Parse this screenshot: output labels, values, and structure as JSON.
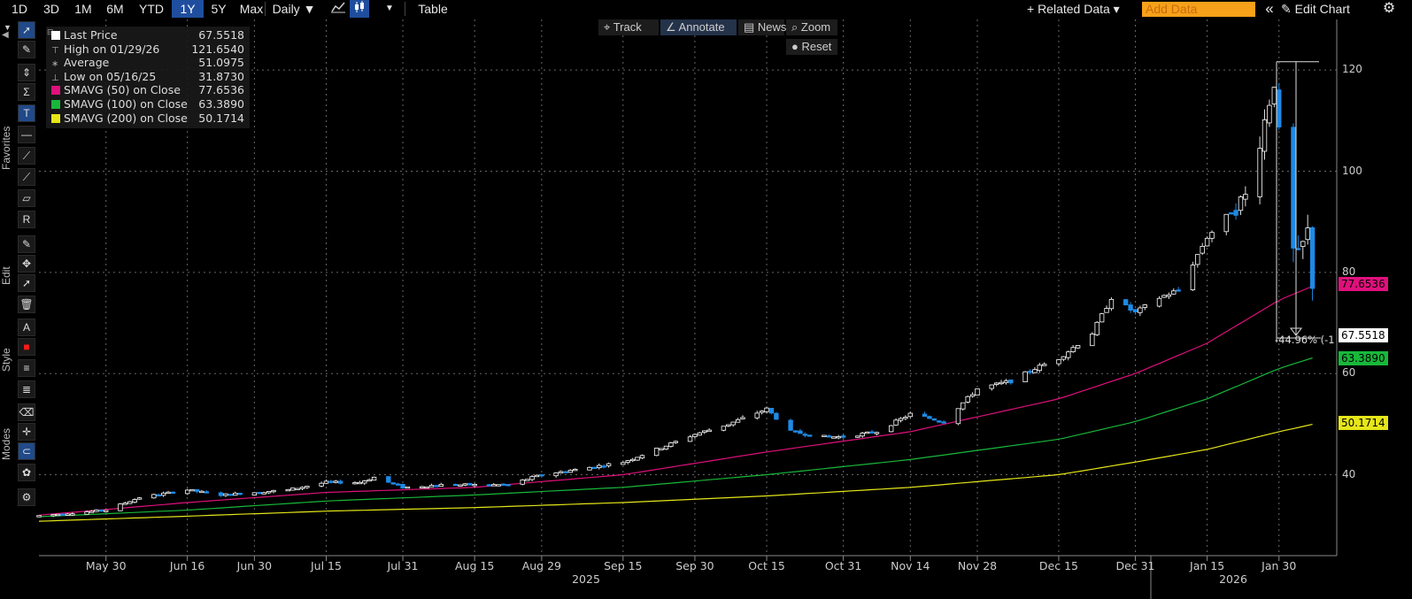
{
  "toolbar": {
    "periods": [
      "1D",
      "3D",
      "1M",
      "6M",
      "YTD",
      "1Y",
      "5Y",
      "Max"
    ],
    "selected_period": "1Y",
    "frequency": "Daily ▼",
    "table_label": "Table",
    "related_data": "+ Related Data ▾",
    "add_data_placeholder": "Add Data",
    "collapse": "«",
    "edit_chart": "✎ Edit Chart",
    "gear": "⚙"
  },
  "chart_buttons": {
    "track": "⌖ Track",
    "annotate": "∠ Annotate",
    "news": "▤ News",
    "zoom": "⌕ Zoom",
    "reset": "● Reset"
  },
  "side_labels": {
    "favorites": "Favorites",
    "edit": "Edit",
    "style": "Style",
    "modes": "Modes"
  },
  "legend": [
    {
      "label": "Last Price",
      "value": "67.5518",
      "color": "#ffffff",
      "marker": "box"
    },
    {
      "label": "High on 01/29/26",
      "value": "121.6540",
      "color": "#aaaaaa",
      "marker": "high"
    },
    {
      "label": "Average",
      "value": "51.0975",
      "color": "#aaaaaa",
      "marker": "avg"
    },
    {
      "label": "Low on 05/16/25",
      "value": "31.8730",
      "color": "#aaaaaa",
      "marker": "low"
    },
    {
      "label": "SMAVG (50)  on Close",
      "value": "77.6536",
      "color": "#e0107c",
      "marker": "box"
    },
    {
      "label": "SMAVG (100)  on Close",
      "value": "63.3890",
      "color": "#18b83a",
      "marker": "box"
    },
    {
      "label": "SMAVG (200)  on Close",
      "value": "50.1714",
      "color": "#e6e619",
      "marker": "box"
    }
  ],
  "price_labels": [
    {
      "text": "77.6536",
      "value": 77.6536,
      "color": "#e0107c"
    },
    {
      "text": "67.5518",
      "value": 67.5518,
      "color": "#ffffff"
    },
    {
      "text": "63.3890",
      "value": 63.389,
      "color": "#18b83a"
    },
    {
      "text": "50.1714",
      "value": 50.1714,
      "color": "#e6e619"
    }
  ],
  "annotation": {
    "pct_label": "-44.96% (-1"
  },
  "chart_data": {
    "type": "line",
    "chart_style": "candlestick",
    "ylim": [
      24,
      130
    ],
    "yticks": [
      40,
      60,
      80,
      100,
      120
    ],
    "x_ticks": [
      "May 30",
      "Jun 16",
      "Jun 30",
      "Jul 15",
      "Jul 31",
      "Aug 15",
      "Aug 29",
      "Sep 15",
      "Sep 30",
      "Oct 15",
      "Oct 31",
      "Nov 14",
      "Nov 28",
      "Dec 15",
      "Dec 31",
      "Jan 15",
      "Jan 30"
    ],
    "years": [
      "2025",
      "2026"
    ],
    "up_color": "#ffffff",
    "down_color": "#1e8ae6",
    "price": [
      [
        "05-16",
        31.9
      ],
      [
        "05-30",
        33.0
      ],
      [
        "06-06",
        35.5
      ],
      [
        "06-16",
        37.0
      ],
      [
        "06-23",
        36.0
      ],
      [
        "06-30",
        36.5
      ],
      [
        "07-07",
        37.0
      ],
      [
        "07-15",
        38.5
      ],
      [
        "07-22",
        38.5
      ],
      [
        "07-25",
        39.5
      ],
      [
        "07-31",
        37.5
      ],
      [
        "08-08",
        38.0
      ],
      [
        "08-15",
        38.0
      ],
      [
        "08-22",
        38.0
      ],
      [
        "08-29",
        40.0
      ],
      [
        "09-05",
        41.0
      ],
      [
        "09-15",
        42.5
      ],
      [
        "09-22",
        45.0
      ],
      [
        "09-30",
        48.0
      ],
      [
        "10-07",
        50.0
      ],
      [
        "10-15",
        53.0
      ],
      [
        "10-20",
        48.5
      ],
      [
        "10-27",
        47.5
      ],
      [
        "10-31",
        47.5
      ],
      [
        "11-07",
        48.5
      ],
      [
        "11-14",
        52.0
      ],
      [
        "11-21",
        50.5
      ],
      [
        "11-28",
        57.0
      ],
      [
        "12-05",
        58.5
      ],
      [
        "12-10",
        61.0
      ],
      [
        "12-15",
        63.0
      ],
      [
        "12-22",
        68.0
      ],
      [
        "12-26",
        75.0
      ],
      [
        "12-31",
        72.0
      ],
      [
        "01-05",
        75.0
      ],
      [
        "01-09",
        76.5
      ],
      [
        "01-15",
        87.0
      ],
      [
        "01-20",
        92.0
      ],
      [
        "01-23",
        95.0
      ],
      [
        "01-27",
        110.0
      ],
      [
        "01-29",
        118.0
      ],
      [
        "02-01",
        85.0
      ],
      [
        "02-03",
        83.0
      ],
      [
        "02-05",
        88.0
      ],
      [
        "02-07",
        67.55
      ]
    ],
    "series": [
      {
        "name": "SMAVG (50)  on Close",
        "color": "#e0107c",
        "points": [
          [
            "05-16",
            32.0
          ],
          [
            "06-16",
            34.5
          ],
          [
            "07-15",
            36.5
          ],
          [
            "08-15",
            37.5
          ],
          [
            "09-15",
            40.0
          ],
          [
            "10-15",
            44.5
          ],
          [
            "11-14",
            48.5
          ],
          [
            "12-15",
            55.0
          ],
          [
            "12-31",
            60.0
          ],
          [
            "01-15",
            66.0
          ],
          [
            "01-30",
            74.5
          ],
          [
            "02-07",
            77.65
          ]
        ]
      },
      {
        "name": "SMAVG (100)  on Close",
        "color": "#18b83a",
        "points": [
          [
            "05-16",
            31.7
          ],
          [
            "06-16",
            33.0
          ],
          [
            "07-15",
            34.8
          ],
          [
            "08-15",
            36.0
          ],
          [
            "09-15",
            37.5
          ],
          [
            "10-15",
            40.0
          ],
          [
            "11-14",
            43.0
          ],
          [
            "12-15",
            47.0
          ],
          [
            "12-31",
            50.5
          ],
          [
            "01-15",
            55.0
          ],
          [
            "01-30",
            61.0
          ],
          [
            "02-07",
            63.39
          ]
        ]
      },
      {
        "name": "SMAVG (200)  on Close",
        "color": "#e6e619",
        "points": [
          [
            "05-16",
            30.8
          ],
          [
            "06-16",
            31.8
          ],
          [
            "07-15",
            32.8
          ],
          [
            "08-15",
            33.5
          ],
          [
            "09-15",
            34.5
          ],
          [
            "10-15",
            35.8
          ],
          [
            "11-14",
            37.5
          ],
          [
            "12-15",
            40.0
          ],
          [
            "12-31",
            42.5
          ],
          [
            "01-15",
            45.0
          ],
          [
            "01-30",
            48.5
          ],
          [
            "02-07",
            50.17
          ]
        ]
      }
    ]
  }
}
